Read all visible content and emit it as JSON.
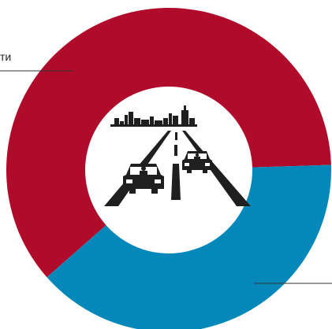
{
  "chart_data": {
    "type": "pie",
    "variant": "donut",
    "title": "",
    "slices": [
      {
        "name": "ти",
        "value": 61,
        "color": "#B00B2A"
      },
      {
        "name": "",
        "value": 39,
        "color": "#0488BA"
      }
    ],
    "legend": "none",
    "center_icon": "road-with-cars-and-city-skyline-icon",
    "icon_color": "#1F1F1F"
  }
}
